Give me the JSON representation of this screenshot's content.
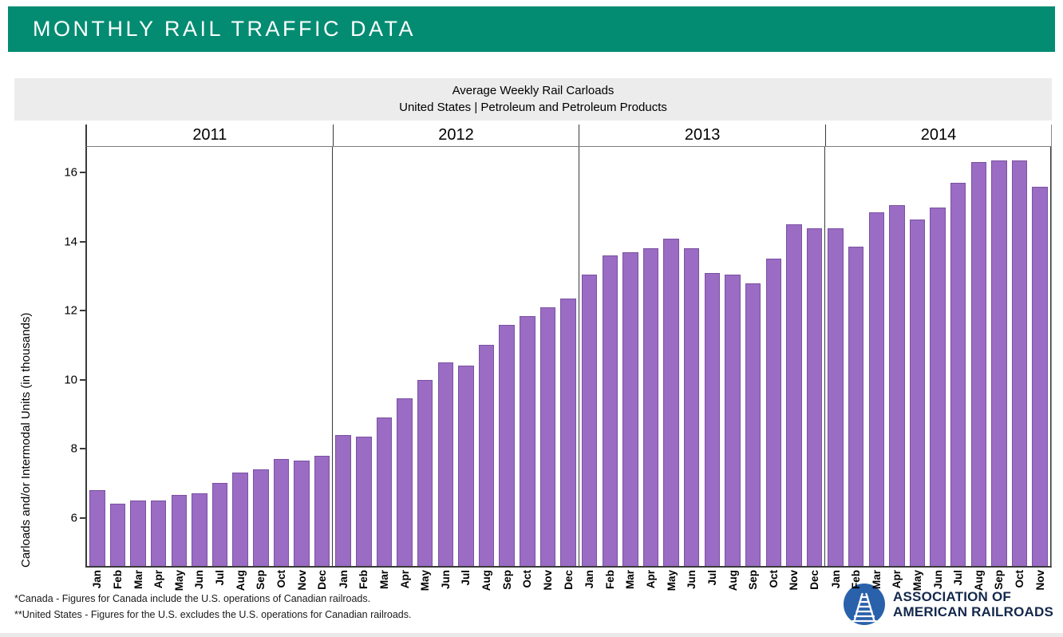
{
  "header": {
    "title": "MONTHLY RAIL TRAFFIC DATA",
    "bg_color": "#048C72",
    "text_color": "#FFFFFF"
  },
  "chart": {
    "title_line1": "Average Weekly Rail Carloads",
    "title_line2": "United States | Petroleum and Petroleum Products",
    "ylabel": "Carloads and/or Intermodal Units (in thousands)",
    "band_bg": "#ECECEC"
  },
  "chart_data": {
    "type": "bar",
    "title": "Average Weekly Rail Carloads",
    "subtitle": "United States | Petroleum and Petroleum Products",
    "xlabel": "",
    "ylabel": "Carloads and/or Intermodal Units (in thousands)",
    "ylim": [
      4.6,
      16.75
    ],
    "yticks": [
      6,
      8,
      10,
      12,
      14,
      16
    ],
    "grid": false,
    "legend": "none",
    "bar_color": "#9A6CC4",
    "bar_edge_color": "#7B52A1",
    "groups": [
      {
        "year": "2011",
        "months": [
          "Jan",
          "Feb",
          "Mar",
          "Apr",
          "May",
          "Jun",
          "Jul",
          "Aug",
          "Sep",
          "Oct",
          "Nov",
          "Dec"
        ],
        "values": [
          6.8,
          6.4,
          6.5,
          6.5,
          6.65,
          6.7,
          7.0,
          7.3,
          7.4,
          7.7,
          7.65,
          7.8
        ]
      },
      {
        "year": "2012",
        "months": [
          "Jan",
          "Feb",
          "Mar",
          "Apr",
          "May",
          "Jun",
          "Jul",
          "Aug",
          "Sep",
          "Oct",
          "Nov",
          "Dec"
        ],
        "values": [
          8.4,
          8.35,
          8.9,
          9.45,
          10.0,
          10.5,
          10.4,
          11.0,
          11.6,
          11.85,
          12.1,
          12.35
        ]
      },
      {
        "year": "2013",
        "months": [
          "Jan",
          "Feb",
          "Mar",
          "Apr",
          "May",
          "Jun",
          "Jul",
          "Aug",
          "Sep",
          "Oct",
          "Nov",
          "Dec"
        ],
        "values": [
          13.05,
          13.6,
          13.7,
          13.8,
          14.1,
          13.8,
          13.1,
          13.05,
          12.8,
          13.5,
          14.5,
          14.4
        ]
      },
      {
        "year": "2014",
        "months": [
          "Jan",
          "Feb",
          "Mar",
          "Apr",
          "May",
          "Jun",
          "Jul",
          "Aug",
          "Sep",
          "Oct",
          "Nov"
        ],
        "values": [
          14.4,
          13.85,
          14.85,
          15.05,
          14.65,
          15.0,
          15.7,
          16.3,
          16.35,
          16.35,
          15.6
        ]
      }
    ]
  },
  "footnotes": {
    "line1": "*Canada - Figures for Canada include the U.S. operations of Canadian railroads.",
    "line2": "**United States - Figures for the U.S. excludes the U.S. operations for Canadian railroads."
  },
  "logo": {
    "line1": "ASSOCIATION OF",
    "line2": "AMERICAN RAILROADS",
    "circle_color": "#2A61AB",
    "text_color": "#14284B"
  }
}
